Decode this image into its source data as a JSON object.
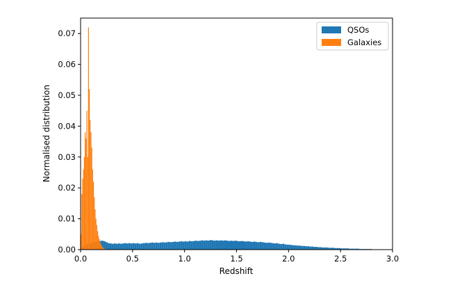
{
  "chart_data": {
    "type": "bar",
    "title": "",
    "xlabel": "Redshift",
    "ylabel": "Normalised distribution",
    "xlim": [
      0.0,
      3.0
    ],
    "ylim": [
      0.0,
      0.075
    ],
    "xticks": [
      "0.0",
      "0.5",
      "1.0",
      "1.5",
      "2.0",
      "2.5",
      "3.0"
    ],
    "yticks": [
      "0.00",
      "0.01",
      "0.02",
      "0.03",
      "0.04",
      "0.05",
      "0.06",
      "0.07"
    ],
    "legend_position": "top-right",
    "grid": false,
    "bin_width": 0.02,
    "series": [
      {
        "name": "QSOs",
        "color": "#1f77b4",
        "x": [
          0.01,
          0.03,
          0.05,
          0.07,
          0.09,
          0.11,
          0.13,
          0.15,
          0.17,
          0.19,
          0.21,
          0.23,
          0.25,
          0.27,
          0.29,
          0.31,
          0.33,
          0.35,
          0.37,
          0.39,
          0.41,
          0.43,
          0.45,
          0.47,
          0.49,
          0.51,
          0.53,
          0.55,
          0.57,
          0.59,
          0.61,
          0.63,
          0.65,
          0.67,
          0.69,
          0.71,
          0.73,
          0.75,
          0.77,
          0.79,
          0.81,
          0.83,
          0.85,
          0.87,
          0.89,
          0.91,
          0.93,
          0.95,
          0.97,
          0.99,
          1.01,
          1.03,
          1.05,
          1.07,
          1.09,
          1.11,
          1.13,
          1.15,
          1.17,
          1.19,
          1.21,
          1.23,
          1.25,
          1.27,
          1.29,
          1.31,
          1.33,
          1.35,
          1.37,
          1.39,
          1.41,
          1.43,
          1.45,
          1.47,
          1.49,
          1.51,
          1.53,
          1.55,
          1.57,
          1.59,
          1.61,
          1.63,
          1.65,
          1.67,
          1.69,
          1.71,
          1.73,
          1.75,
          1.77,
          1.79,
          1.81,
          1.83,
          1.85,
          1.87,
          1.89,
          1.91,
          1.93,
          1.95,
          1.97,
          1.99,
          2.01,
          2.03,
          2.05,
          2.07,
          2.09,
          2.11,
          2.13,
          2.15,
          2.17,
          2.19,
          2.21,
          2.23,
          2.25,
          2.27,
          2.29,
          2.31,
          2.33,
          2.35,
          2.37,
          2.39,
          2.41,
          2.43,
          2.45,
          2.47,
          2.49,
          2.51,
          2.53,
          2.55,
          2.57,
          2.59,
          2.61,
          2.63,
          2.65,
          2.67,
          2.69,
          2.71,
          2.73,
          2.75,
          2.77,
          2.79,
          2.81,
          2.83,
          2.85,
          2.87,
          2.89,
          2.91,
          2.93,
          2.95,
          2.97,
          2.99
        ],
        "values": [
          0.0008,
          0.0012,
          0.0015,
          0.0018,
          0.002,
          0.0022,
          0.0024,
          0.0026,
          0.0027,
          0.0028,
          0.0029,
          0.0027,
          0.0024,
          0.0021,
          0.002,
          0.0019,
          0.002,
          0.0019,
          0.002,
          0.0019,
          0.002,
          0.0021,
          0.002,
          0.0021,
          0.002,
          0.0021,
          0.002,
          0.0021,
          0.0019,
          0.002,
          0.0021,
          0.0022,
          0.0021,
          0.0022,
          0.0023,
          0.0022,
          0.0023,
          0.0022,
          0.0023,
          0.0024,
          0.0023,
          0.0024,
          0.0025,
          0.0024,
          0.0025,
          0.0026,
          0.0025,
          0.0026,
          0.0027,
          0.0026,
          0.0027,
          0.0026,
          0.0028,
          0.0027,
          0.0028,
          0.0029,
          0.0028,
          0.0029,
          0.003,
          0.0029,
          0.003,
          0.0029,
          0.0031,
          0.003,
          0.0029,
          0.003,
          0.0029,
          0.003,
          0.0029,
          0.003,
          0.0029,
          0.0028,
          0.0029,
          0.0028,
          0.0029,
          0.0028,
          0.0027,
          0.0028,
          0.0027,
          0.0026,
          0.0027,
          0.0026,
          0.0025,
          0.0026,
          0.0025,
          0.0024,
          0.0025,
          0.0024,
          0.0023,
          0.0022,
          0.0023,
          0.0022,
          0.0021,
          0.002,
          0.0021,
          0.0019,
          0.0018,
          0.0019,
          0.0017,
          0.0016,
          0.0016,
          0.0015,
          0.0014,
          0.0014,
          0.0013,
          0.0013,
          0.0012,
          0.0012,
          0.0011,
          0.0011,
          0.001,
          0.001,
          0.0009,
          0.0009,
          0.0008,
          0.0008,
          0.0007,
          0.0007,
          0.0007,
          0.0006,
          0.0006,
          0.0006,
          0.0005,
          0.0005,
          0.0005,
          0.0004,
          0.0004,
          0.0004,
          0.0004,
          0.0003,
          0.0003,
          0.0003,
          0.0003,
          0.0003,
          0.0002,
          0.0002,
          0.0002,
          0.0002,
          0.0002,
          0.0002,
          0.0001,
          0.0001,
          0.0001,
          0.0001,
          0.0001,
          0.0001,
          0.0001,
          0.0001,
          0.0001,
          0.0001
        ]
      },
      {
        "name": "Galaxies",
        "color": "#ff7f0e",
        "x": [
          0.004,
          0.012,
          0.02,
          0.028,
          0.036,
          0.044,
          0.052,
          0.06,
          0.068,
          0.076,
          0.084,
          0.092,
          0.1,
          0.108,
          0.116,
          0.124,
          0.132,
          0.14,
          0.148,
          0.156,
          0.164,
          0.172,
          0.18,
          0.188,
          0.196,
          0.204,
          0.212,
          0.22,
          0.228,
          0.236
        ],
        "widths": 0.008,
        "values": [
          0.005,
          0.018,
          0.023,
          0.026,
          0.03,
          0.038,
          0.036,
          0.045,
          0.03,
          0.072,
          0.052,
          0.042,
          0.038,
          0.033,
          0.026,
          0.022,
          0.017,
          0.013,
          0.01,
          0.008,
          0.006,
          0.0045,
          0.0035,
          0.0025,
          0.0018,
          0.0012,
          0.0008,
          0.0005,
          0.0003,
          0.0002
        ]
      }
    ]
  }
}
